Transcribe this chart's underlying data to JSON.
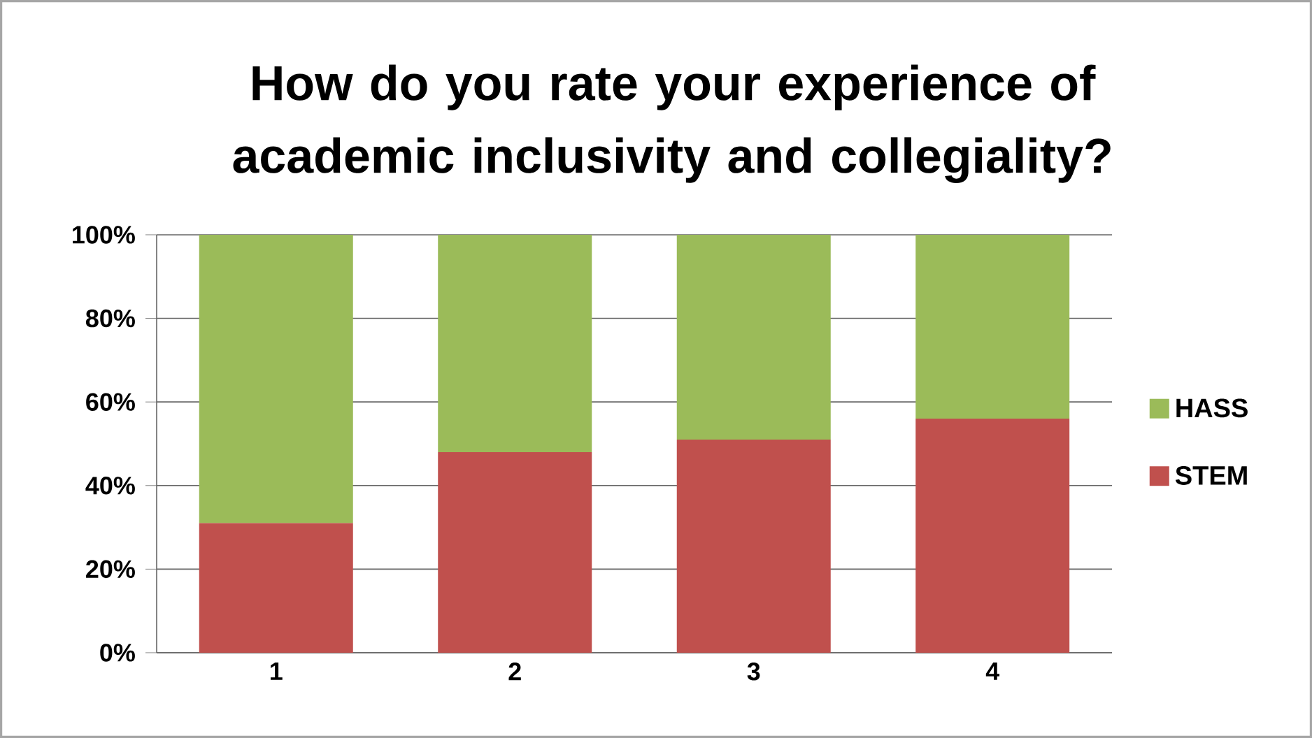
{
  "chart_data": {
    "type": "bar",
    "stacked": true,
    "title": "How do you rate your experience of academic inclusivity and collegiality?",
    "categories": [
      "1",
      "2",
      "3",
      "4"
    ],
    "series": [
      {
        "name": "STEM",
        "color": "#c0504d",
        "values": [
          31,
          48,
          51,
          56
        ]
      },
      {
        "name": "HASS",
        "color": "#9bbb59",
        "values": [
          69,
          52,
          49,
          44
        ]
      }
    ],
    "ylim": [
      0,
      100
    ],
    "yticks": [
      {
        "value": 0,
        "label": "0%"
      },
      {
        "value": 20,
        "label": "20%"
      },
      {
        "value": 40,
        "label": "40%"
      },
      {
        "value": 60,
        "label": "60%"
      },
      {
        "value": 80,
        "label": "80%"
      },
      {
        "value": 100,
        "label": "100%"
      }
    ],
    "grid": "y",
    "legend": "right"
  }
}
